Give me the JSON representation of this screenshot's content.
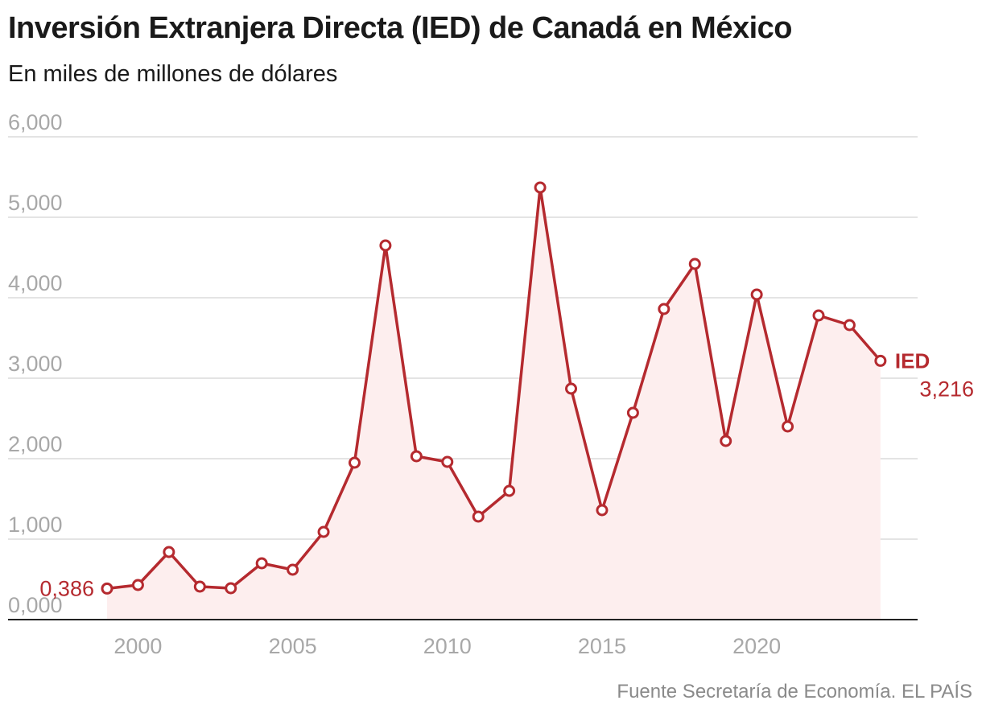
{
  "header": {
    "title": "Inversión Extranjera Directa (IED) de Canadá en México",
    "subtitle": "En miles de millones de dólares"
  },
  "footer": {
    "source": "Fuente Secretaría de Economía. EL PAÍS"
  },
  "colors": {
    "line": "#b52a2f",
    "area": "#fdeeee",
    "grid": "#dcdcdc",
    "axis": "#222222",
    "tick": "#a8a8a8"
  },
  "chart_data": {
    "type": "area",
    "title": "Inversión Extranjera Directa (IED) de Canadá en México",
    "subtitle": "En miles de millones de dólares",
    "xlabel": "",
    "ylabel": "",
    "xlim": [
      1995.8,
      2025.2
    ],
    "ylim": [
      0,
      6000
    ],
    "grid": true,
    "yticks": [
      0,
      1000,
      2000,
      3000,
      4000,
      5000,
      6000
    ],
    "ytick_labels": [
      "0,000",
      "1,000",
      "2,000",
      "3,000",
      "4,000",
      "5,000",
      "6,000"
    ],
    "xticks": [
      2000,
      2005,
      2010,
      2015,
      2020
    ],
    "xtick_labels": [
      "2000",
      "2005",
      "2010",
      "2015",
      "2020"
    ],
    "series": [
      {
        "name": "IED",
        "x": [
          1999,
          2000,
          2001,
          2002,
          2003,
          2004,
          2005,
          2006,
          2007,
          2008,
          2009,
          2010,
          2011,
          2012,
          2013,
          2014,
          2015,
          2016,
          2017,
          2018,
          2019,
          2020,
          2021,
          2022,
          2023,
          2024
        ],
        "values": [
          386,
          430,
          840,
          410,
          390,
          700,
          620,
          1090,
          1950,
          4650,
          2030,
          1960,
          1280,
          1600,
          5370,
          2870,
          1360,
          2570,
          3860,
          4420,
          2220,
          4040,
          2400,
          3780,
          3660,
          3216
        ]
      }
    ],
    "annotations": {
      "start_label": "0,386",
      "series_label": "IED",
      "end_label": "3,216"
    }
  }
}
